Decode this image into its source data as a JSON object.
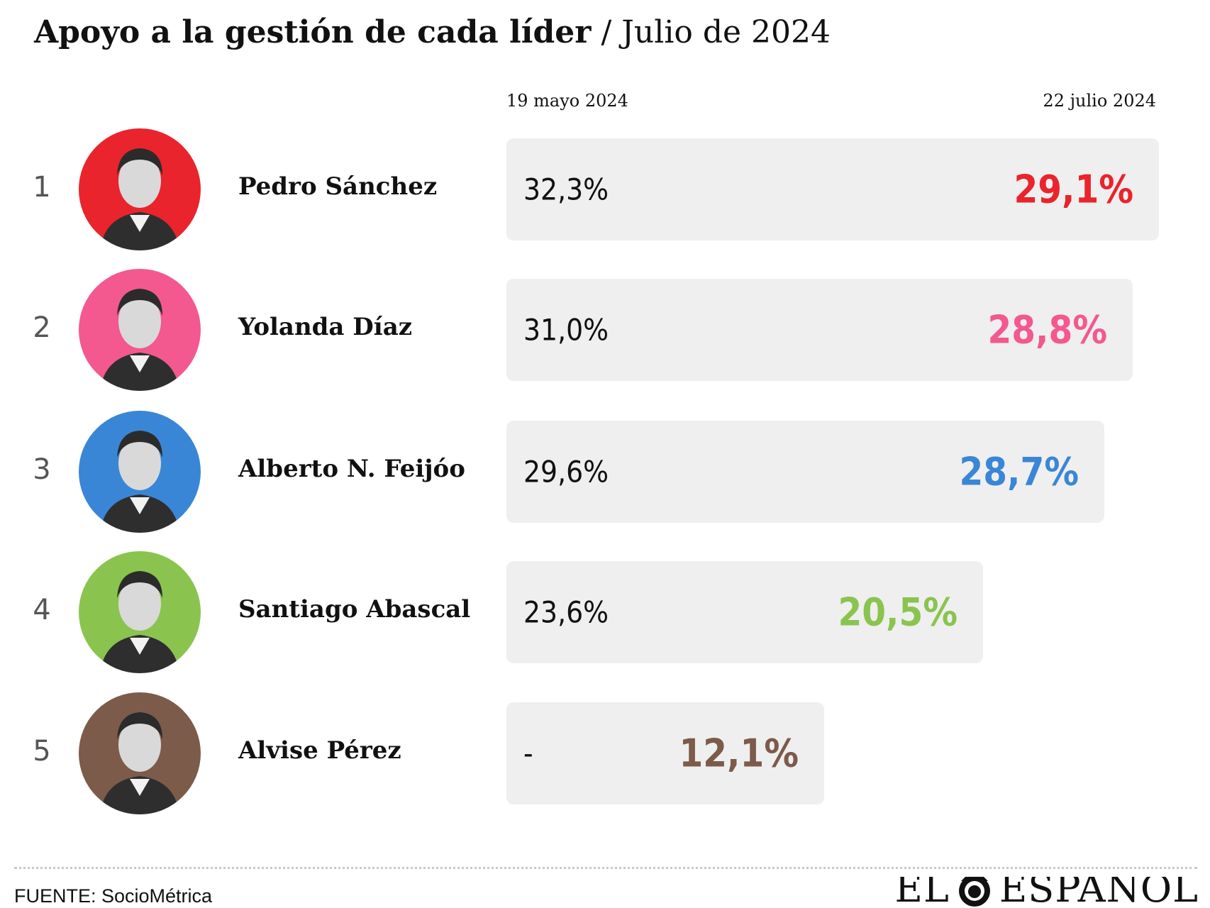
{
  "chart_data": {
    "type": "bar",
    "title": "Apoyo a la gestión de cada líder",
    "title_separator": "/",
    "subtitle": "Julio de 2024",
    "column_labels": {
      "start": "19 mayo 2024",
      "end": "22 julio 2024"
    },
    "x_max": 32.3,
    "rows": [
      {
        "rank": "1",
        "name": "Pedro Sánchez",
        "start_label": "32,3%",
        "start_value": 32.3,
        "end_label": "29,1%",
        "end_value": 29.1,
        "color": "#e9242c"
      },
      {
        "rank": "2",
        "name": "Yolanda Díaz",
        "start_label": "31,0%",
        "start_value": 31.0,
        "end_label": "28,8%",
        "end_value": 28.8,
        "color": "#f3588f"
      },
      {
        "rank": "3",
        "name": "Alberto N. Feijóo",
        "start_label": "29,6%",
        "start_value": 29.6,
        "end_label": "28,7%",
        "end_value": 28.7,
        "color": "#3a86d6"
      },
      {
        "rank": "4",
        "name": "Santiago Abascal",
        "start_label": "23,6%",
        "start_value": 23.6,
        "end_label": "20,5%",
        "end_value": 20.5,
        "color": "#8ac44f"
      },
      {
        "rank": "5",
        "name": "Alvise Pérez",
        "start_label": "-",
        "start_value": null,
        "end_label": "12,1%",
        "end_value": 12.1,
        "color": "#7c5b4a"
      }
    ]
  },
  "footer": {
    "source": "FUENTE: SocioMétrica",
    "logo_left": "EL",
    "logo_right": "ESPAÑOL"
  }
}
